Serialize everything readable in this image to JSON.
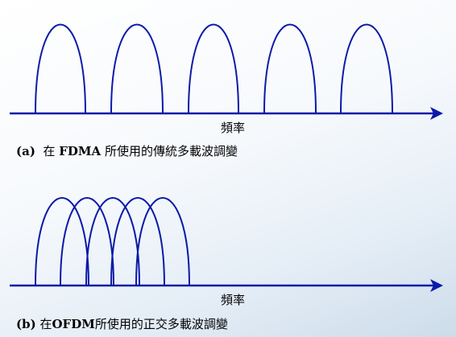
{
  "panel_a": {
    "axis_label": "頻率",
    "caption_prefix": "(a)",
    "caption_text_pre": "在",
    "caption_bold": "FDMA",
    "caption_text_post": "所使用的傳統多載波調變"
  },
  "panel_b": {
    "axis_label": "頻率",
    "caption_prefix": "(b)",
    "caption_text_pre": "在",
    "caption_bold": "OFDM",
    "caption_text_post": "所使用的正交多載波調變"
  },
  "colors": {
    "curve": "#0a1aa8",
    "axis": "#0a1aa8"
  }
}
